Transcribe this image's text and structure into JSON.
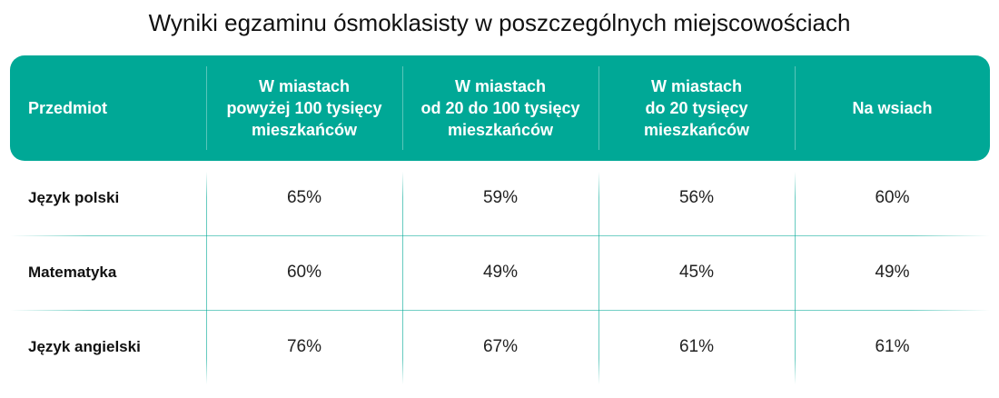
{
  "title": "Wyniki egzaminu ósmoklasisty w poszczególnych miejscowościach",
  "colors": {
    "header_bg": "#00a896",
    "lines": "#00a896"
  },
  "chart_data": {
    "type": "table",
    "title": "Wyniki egzaminu ósmoklasisty w poszczególnych miejscowościach",
    "columns": [
      "Przedmiot",
      "W miastach\npowyżej 100 tysięcy\nmieszkańców",
      "W miastach\nod 20 do 100 tysięcy\nmieszkańców",
      "W miastach\ndo 20 tysięcy\nmieszkańców",
      "Na wsiach"
    ],
    "rows": [
      {
        "subject": "Język polski",
        "values": [
          "65%",
          "59%",
          "56%",
          "60%"
        ]
      },
      {
        "subject": "Matematyka",
        "values": [
          "60%",
          "49%",
          "45%",
          "49%"
        ]
      },
      {
        "subject": "Język angielski",
        "values": [
          "76%",
          "67%",
          "61%",
          "61%"
        ]
      }
    ]
  }
}
